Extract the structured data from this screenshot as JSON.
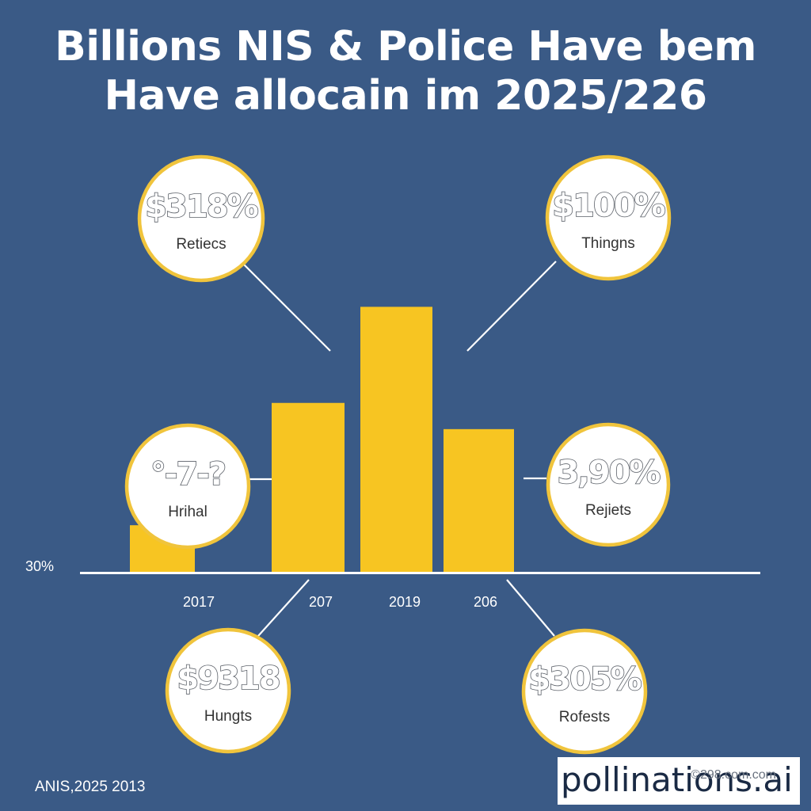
{
  "title": {
    "line1": "Billions NIS & Police Have bem",
    "line2": "Have allocain im 2025/226"
  },
  "colors": {
    "background": "#3a5a86",
    "bar": "#f7c522",
    "bubble_fill": "#ffffff",
    "bubble_border": "#f0c43c",
    "axis": "#ffffff"
  },
  "chart_data": {
    "type": "bar",
    "categories": [
      "2017",
      "207",
      "2019",
      "206"
    ],
    "values": [
      16,
      58,
      91,
      49
    ],
    "ylim": [
      0,
      100
    ],
    "y_axis_label": "30%",
    "grid": false,
    "annotations": [
      {
        "value": "$318%",
        "label": "Retiecs",
        "position": "top-left"
      },
      {
        "value": "$100%",
        "label": "Thingns",
        "position": "top-right"
      },
      {
        "value": "°-7-?",
        "label": "Hrihal",
        "position": "middle-left"
      },
      {
        "value": "3,90%",
        "label": "Rejiets",
        "position": "middle-right"
      },
      {
        "value": "$9318",
        "label": "Hungts",
        "position": "bottom-left"
      },
      {
        "value": "$305%",
        "label": "Rofests",
        "position": "bottom-right"
      }
    ]
  },
  "footer": {
    "left_text": "ANIS,2025 2013",
    "watermark": "pollinations.ai",
    "watermark_sub": "©298.com.com"
  }
}
